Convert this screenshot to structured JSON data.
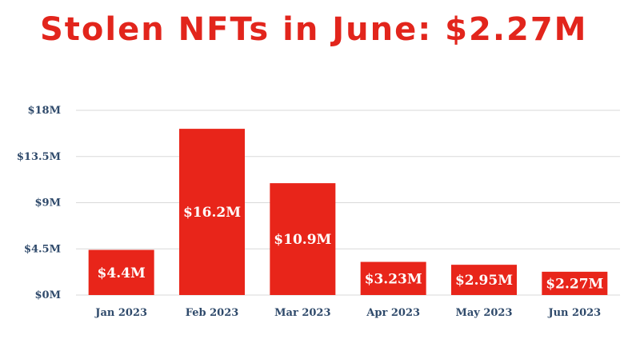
{
  "title": "Stolen NFTs in June: $2.27M",
  "colors": {
    "bar": "#e8251a",
    "title": "#e2251c",
    "axis_text": "#2f4a6b",
    "grid": "#d9d9d9"
  },
  "chart_data": {
    "type": "bar",
    "title": "Stolen NFTs in June: $2.27M",
    "xlabel": "",
    "ylabel": "",
    "categories": [
      "Jan 2023",
      "Feb 2023",
      "Mar 2023",
      "Apr 2023",
      "May 2023",
      "Jun 2023"
    ],
    "values": [
      4.4,
      16.2,
      10.9,
      3.23,
      2.95,
      2.27
    ],
    "data_labels": [
      "$4.4M",
      "$16.2M",
      "$10.9M",
      "$3.23M",
      "$2.95M",
      "$2.27M"
    ],
    "y_ticks": [
      0,
      4.5,
      9,
      13.5,
      18
    ],
    "y_tick_labels": [
      "$0M",
      "$4.5M",
      "$9M",
      "$13.5M",
      "$18M"
    ],
    "ylim": [
      0,
      18
    ],
    "grid": true,
    "legend": "none"
  }
}
